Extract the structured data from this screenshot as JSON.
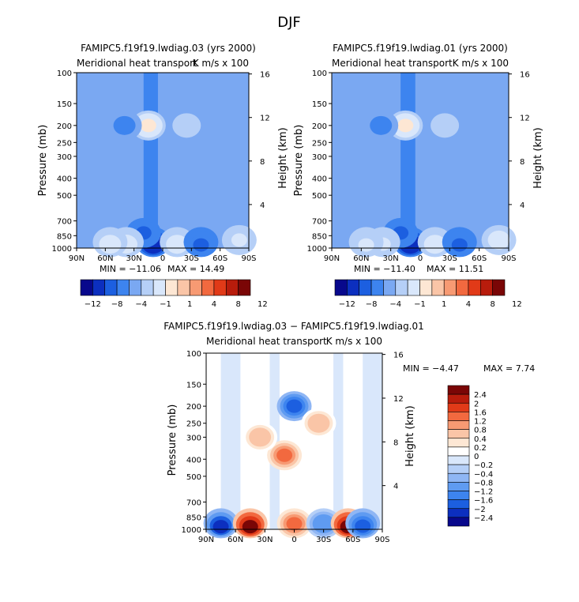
{
  "page": {
    "title": "DJF"
  },
  "colors": {
    "full_scale": [
      "#08088c",
      "#0c2fbf",
      "#1c5fe0",
      "#3d84ef",
      "#7aa8f2",
      "#b5cff7",
      "#d9e7fb",
      "#fde7d4",
      "#fac5a7",
      "#f79a73",
      "#f2693f",
      "#e13a18",
      "#b81c0c",
      "#7a0606"
    ],
    "diff_scale": [
      "#08088c",
      "#0c2fbf",
      "#1c5fe0",
      "#3d84ef",
      "#5f9bf1",
      "#8fb6f4",
      "#b5cff7",
      "#d9e7fb",
      "#ffffff",
      "#fde7d4",
      "#fac5a7",
      "#f79a73",
      "#f2693f",
      "#e13a18",
      "#b81c0c",
      "#7a0606"
    ],
    "missing": "#ffffff"
  },
  "chart_data": [
    {
      "type": "heatmap",
      "panel": "top-left",
      "title": "FAMIPC5.f19f19.lwdiag.03 (yrs 2000)",
      "subtitle_left": "Meridional heat transport",
      "subtitle_right": "K m/s x 100",
      "ylabel": "Pressure (mb)",
      "ylabel_right": "Height (km)",
      "x_ticks": [
        "90N",
        "60N",
        "30N",
        "0",
        "30S",
        "60S",
        "90S"
      ],
      "y_ticks": [
        "100",
        "150",
        "200",
        "250",
        "300",
        "400",
        "500",
        "700",
        "850",
        "1000"
      ],
      "y_ticks_right": [
        "16",
        "12",
        "8",
        "4"
      ],
      "min_label": "MIN = −11.06",
      "max_label": "MAX =  14.49",
      "levels": [
        "−12",
        "−8",
        "−4",
        "−1",
        "1",
        "4",
        "8",
        "12"
      ],
      "features": [
        {
          "lat": 15,
          "pres": 200,
          "value": 10
        },
        {
          "lat": 10,
          "pres": 960,
          "value": -11
        },
        {
          "lat": 20,
          "pres": 820,
          "value": -5
        },
        {
          "lat": 38,
          "pres": 950,
          "value": 6
        },
        {
          "lat": 55,
          "pres": 960,
          "value": 6
        },
        {
          "lat": -15,
          "pres": 960,
          "value": 7
        },
        {
          "lat": -40,
          "pres": 960,
          "value": -5
        },
        {
          "lat": -80,
          "pres": 900,
          "value": 5
        },
        {
          "lat": 40,
          "pres": 200,
          "value": -2
        },
        {
          "lat": -25,
          "pres": 200,
          "value": 3
        }
      ]
    },
    {
      "type": "heatmap",
      "panel": "top-right",
      "title": "FAMIPC5.f19f19.lwdiag.01 (yrs 2000)",
      "subtitle_left": "Meridional heat transport",
      "subtitle_right": "K m/s x 100",
      "ylabel": "Pressure (mb)",
      "ylabel_right": "Height (km)",
      "x_ticks": [
        "90N",
        "60N",
        "30N",
        "0",
        "30S",
        "60S",
        "90S"
      ],
      "y_ticks": [
        "100",
        "150",
        "200",
        "250",
        "300",
        "400",
        "500",
        "700",
        "850",
        "1000"
      ],
      "y_ticks_right": [
        "16",
        "12",
        "8",
        "4"
      ],
      "min_label": "MIN = −11.40",
      "max_label": "MAX =  11.51",
      "levels": [
        "−12",
        "−8",
        "−4",
        "−1",
        "1",
        "4",
        "8",
        "12"
      ],
      "features": [
        {
          "lat": 15,
          "pres": 200,
          "value": 9
        },
        {
          "lat": 10,
          "pres": 960,
          "value": -11
        },
        {
          "lat": 20,
          "pres": 820,
          "value": -5
        },
        {
          "lat": 38,
          "pres": 950,
          "value": 5
        },
        {
          "lat": 55,
          "pres": 960,
          "value": 5
        },
        {
          "lat": -15,
          "pres": 960,
          "value": 6
        },
        {
          "lat": -40,
          "pres": 960,
          "value": -5
        },
        {
          "lat": -80,
          "pres": 900,
          "value": 6
        },
        {
          "lat": 40,
          "pres": 200,
          "value": -2
        },
        {
          "lat": -25,
          "pres": 200,
          "value": 3
        }
      ]
    },
    {
      "type": "heatmap",
      "panel": "bottom",
      "title": "FAMIPC5.f19f19.lwdiag.03 − FAMIPC5.f19f19.lwdiag.01",
      "subtitle_left": "Meridional heat transport",
      "subtitle_right": "K m/s x 100",
      "ylabel": "Pressure (mb)",
      "ylabel_right": "Height (km)",
      "x_ticks": [
        "90N",
        "60N",
        "30N",
        "0",
        "30S",
        "60S",
        "90S"
      ],
      "y_ticks": [
        "100",
        "150",
        "200",
        "250",
        "300",
        "400",
        "500",
        "700",
        "850",
        "1000"
      ],
      "y_ticks_right": [
        "16",
        "12",
        "8",
        "4"
      ],
      "min_label": "MIN =   −4.47",
      "max_label": "MAX =    7.74",
      "levels": [
        "2.4",
        "2",
        "1.6",
        "1.2",
        "0.8",
        "0.4",
        "0.2",
        "0",
        "−0.2",
        "−0.4",
        "−0.8",
        "−1.2",
        "−1.6",
        "−2",
        "−2.4"
      ],
      "features": [
        {
          "lat": 0,
          "pres": 200,
          "value": -2
        },
        {
          "lat": 10,
          "pres": 380,
          "value": 1.2
        },
        {
          "lat": 35,
          "pres": 300,
          "value": 0.6
        },
        {
          "lat": -25,
          "pres": 250,
          "value": 0.6
        },
        {
          "lat": 75,
          "pres": 980,
          "value": -2.4
        },
        {
          "lat": 45,
          "pres": 980,
          "value": 2.4
        },
        {
          "lat": 0,
          "pres": 930,
          "value": 1.2
        },
        {
          "lat": -30,
          "pres": 930,
          "value": -1.2
        },
        {
          "lat": -55,
          "pres": 990,
          "value": 2.4
        },
        {
          "lat": -70,
          "pres": 960,
          "value": -2
        }
      ]
    }
  ]
}
